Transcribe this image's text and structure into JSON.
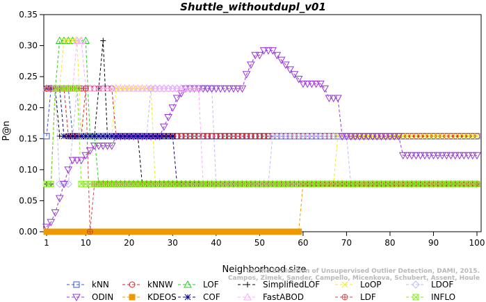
{
  "chart_data": {
    "type": "line",
    "title": "Shuttle_withoutdupl_v01",
    "xlabel": "Neighborhood size",
    "ylabel": "P@n",
    "xlim": [
      1,
      100
    ],
    "ylim": [
      0,
      0.35
    ],
    "xticks": [
      1,
      10,
      20,
      30,
      40,
      50,
      60,
      70,
      80,
      90,
      100
    ],
    "yticks": [
      "0.00",
      "0.05",
      "0.10",
      "0.15",
      "0.20",
      "0.25",
      "0.30",
      "0.35"
    ],
    "grid": false,
    "legend_position": "bottom",
    "credit": [
      "Campos, Zimek, Sander, Campello, Micenkova, Schubert, Assent, Houle",
      "On the Evaluation of Unsupervised Outlier Detection, DAMI, 2015."
    ],
    "series": [
      {
        "name": "kNN",
        "color": "#3355dd",
        "marker": "square",
        "points": [
          [
            1,
            0.154
          ],
          [
            2,
            0.231
          ],
          [
            3,
            0.231
          ],
          [
            4,
            0.231
          ],
          [
            5,
            0.231
          ],
          [
            6,
            0.231
          ],
          [
            7,
            0.154
          ],
          [
            100,
            0.154
          ]
        ]
      },
      {
        "name": "kNNW",
        "color": "#dd2222",
        "marker": "circle",
        "points": [
          [
            1,
            0.231
          ],
          [
            5,
            0.231
          ],
          [
            6,
            0.154
          ],
          [
            9,
            0.154
          ],
          [
            10,
            0.231
          ],
          [
            16,
            0.231
          ],
          [
            17,
            0.154
          ],
          [
            100,
            0.154
          ]
        ]
      },
      {
        "name": "LOF",
        "color": "#22cc22",
        "marker": "triangle-up",
        "points": [
          [
            1,
            0.231
          ],
          [
            3,
            0.231
          ],
          [
            4,
            0.308
          ],
          [
            10,
            0.308
          ],
          [
            11,
            0.154
          ],
          [
            12,
            0.154
          ],
          [
            13,
            0.077
          ],
          [
            100,
            0.077
          ]
        ]
      },
      {
        "name": "SimplifiedLOF",
        "color": "#000000",
        "marker": "plus",
        "points": [
          [
            1,
            0.077
          ],
          [
            2,
            0.077
          ],
          [
            3,
            0.231
          ],
          [
            4,
            0.154
          ],
          [
            12,
            0.154
          ],
          [
            13,
            0.231
          ],
          [
            14,
            0.308
          ],
          [
            15,
            0.154
          ],
          [
            22,
            0.154
          ],
          [
            23,
            0.077
          ],
          [
            100,
            0.077
          ]
        ]
      },
      {
        "name": "LoOP",
        "color": "#eeee22",
        "marker": "x",
        "points": [
          [
            1,
            0.231
          ],
          [
            4,
            0.231
          ],
          [
            5,
            0.308
          ],
          [
            8,
            0.308
          ],
          [
            9,
            0.154
          ],
          [
            16,
            0.154
          ],
          [
            17,
            0.231
          ],
          [
            25,
            0.231
          ],
          [
            26,
            0.077
          ],
          [
            67,
            0.077
          ],
          [
            68,
            0.154
          ],
          [
            100,
            0.154
          ]
        ]
      },
      {
        "name": "LDOF",
        "color": "#bbbbff",
        "marker": "diamond",
        "points": [
          [
            1,
            0.231
          ],
          [
            3,
            0.231
          ],
          [
            4,
            0.077
          ],
          [
            6,
            0.077
          ],
          [
            8,
            0.231
          ],
          [
            9,
            0.154
          ],
          [
            24,
            0.154
          ],
          [
            25,
            0.231
          ],
          [
            39,
            0.231
          ],
          [
            40,
            0.077
          ],
          [
            52,
            0.077
          ],
          [
            53,
            0.154
          ],
          [
            70,
            0.154
          ],
          [
            71,
            0.077
          ],
          [
            100,
            0.077
          ]
        ]
      },
      {
        "name": "ODIN",
        "color": "#9933dd",
        "marker": "triangle-down",
        "points": [
          [
            1,
            0.0077
          ],
          [
            2,
            0.0154
          ],
          [
            3,
            0.0308
          ],
          [
            4,
            0.0538
          ],
          [
            5,
            0.0769
          ],
          [
            6,
            0.1
          ],
          [
            7,
            0.1154
          ],
          [
            8,
            0.1154
          ],
          [
            9,
            0.1154
          ],
          [
            10,
            0.1231
          ],
          [
            11,
            0.1308
          ],
          [
            12,
            0.1385
          ],
          [
            13,
            0.1385
          ],
          [
            14,
            0.1385
          ],
          [
            15,
            0.1385
          ],
          [
            16,
            0.1385
          ],
          [
            17,
            0.1538
          ],
          [
            18,
            0.1538
          ],
          [
            19,
            0.1538
          ],
          [
            20,
            0.1538
          ],
          [
            21,
            0.1538
          ],
          [
            22,
            0.1538
          ],
          [
            23,
            0.1538
          ],
          [
            24,
            0.1538
          ],
          [
            25,
            0.1538
          ],
          [
            26,
            0.1538
          ],
          [
            27,
            0.1538
          ],
          [
            28,
            0.1692
          ],
          [
            29,
            0.1846
          ],
          [
            30,
            0.2
          ],
          [
            31,
            0.2154
          ],
          [
            32,
            0.2231
          ],
          [
            33,
            0.2308
          ],
          [
            45,
            0.2308
          ],
          [
            46,
            0.2308
          ],
          [
            47,
            0.2538
          ],
          [
            48,
            0.2692
          ],
          [
            49,
            0.2846
          ],
          [
            50,
            0.2846
          ],
          [
            51,
            0.2923
          ],
          [
            52,
            0.2923
          ],
          [
            53,
            0.2923
          ],
          [
            54,
            0.2846
          ],
          [
            55,
            0.2769
          ],
          [
            56,
            0.2692
          ],
          [
            57,
            0.2615
          ],
          [
            58,
            0.2538
          ],
          [
            59,
            0.2462
          ],
          [
            60,
            0.2385
          ],
          [
            64,
            0.2385
          ],
          [
            65,
            0.2308
          ],
          [
            66,
            0.2154
          ],
          [
            67,
            0.2154
          ],
          [
            68,
            0.2154
          ],
          [
            69,
            0.1538
          ],
          [
            82,
            0.1538
          ],
          [
            83,
            0.1231
          ],
          [
            100,
            0.1231
          ]
        ]
      },
      {
        "name": "KDEOS",
        "color": "#ee9900",
        "marker": "square-filled",
        "points": [
          [
            1,
            0.0
          ],
          [
            59,
            0.0
          ],
          [
            60,
            0.077
          ],
          [
            100,
            0.077
          ]
        ]
      },
      {
        "name": "COF",
        "color": "#000088",
        "marker": "star",
        "points": [
          [
            1,
            0.231
          ],
          [
            4,
            0.231
          ],
          [
            5,
            0.154
          ],
          [
            30,
            0.154
          ],
          [
            31,
            0.077
          ],
          [
            100,
            0.077
          ]
        ]
      },
      {
        "name": "FastABOD",
        "color": "#ffaaff",
        "marker": "triangle-up",
        "points": [
          [
            1,
            0.231
          ],
          [
            7,
            0.231
          ],
          [
            8,
            0.308
          ],
          [
            9,
            0.308
          ],
          [
            10,
            0.231
          ],
          [
            36,
            0.231
          ],
          [
            37,
            0.077
          ],
          [
            100,
            0.077
          ]
        ]
      },
      {
        "name": "LDF",
        "color": "#cc4444",
        "marker": "circle-plus",
        "points": [
          [
            1,
            0.231
          ],
          [
            10,
            0.231
          ],
          [
            11,
            0.0
          ],
          [
            12,
            0.077
          ],
          [
            13,
            0.077
          ],
          [
            14,
            0.077
          ],
          [
            100,
            0.077
          ]
        ]
      },
      {
        "name": "INFLO",
        "color": "#88ee22",
        "marker": "square-x",
        "points": [
          [
            1,
            0.077
          ],
          [
            2,
            0.077
          ],
          [
            3,
            0.231
          ],
          [
            4,
            0.231
          ],
          [
            5,
            0.231
          ],
          [
            6,
            0.231
          ],
          [
            7,
            0.231
          ],
          [
            8,
            0.231
          ],
          [
            9,
            0.077
          ],
          [
            100,
            0.077
          ]
        ]
      }
    ]
  }
}
